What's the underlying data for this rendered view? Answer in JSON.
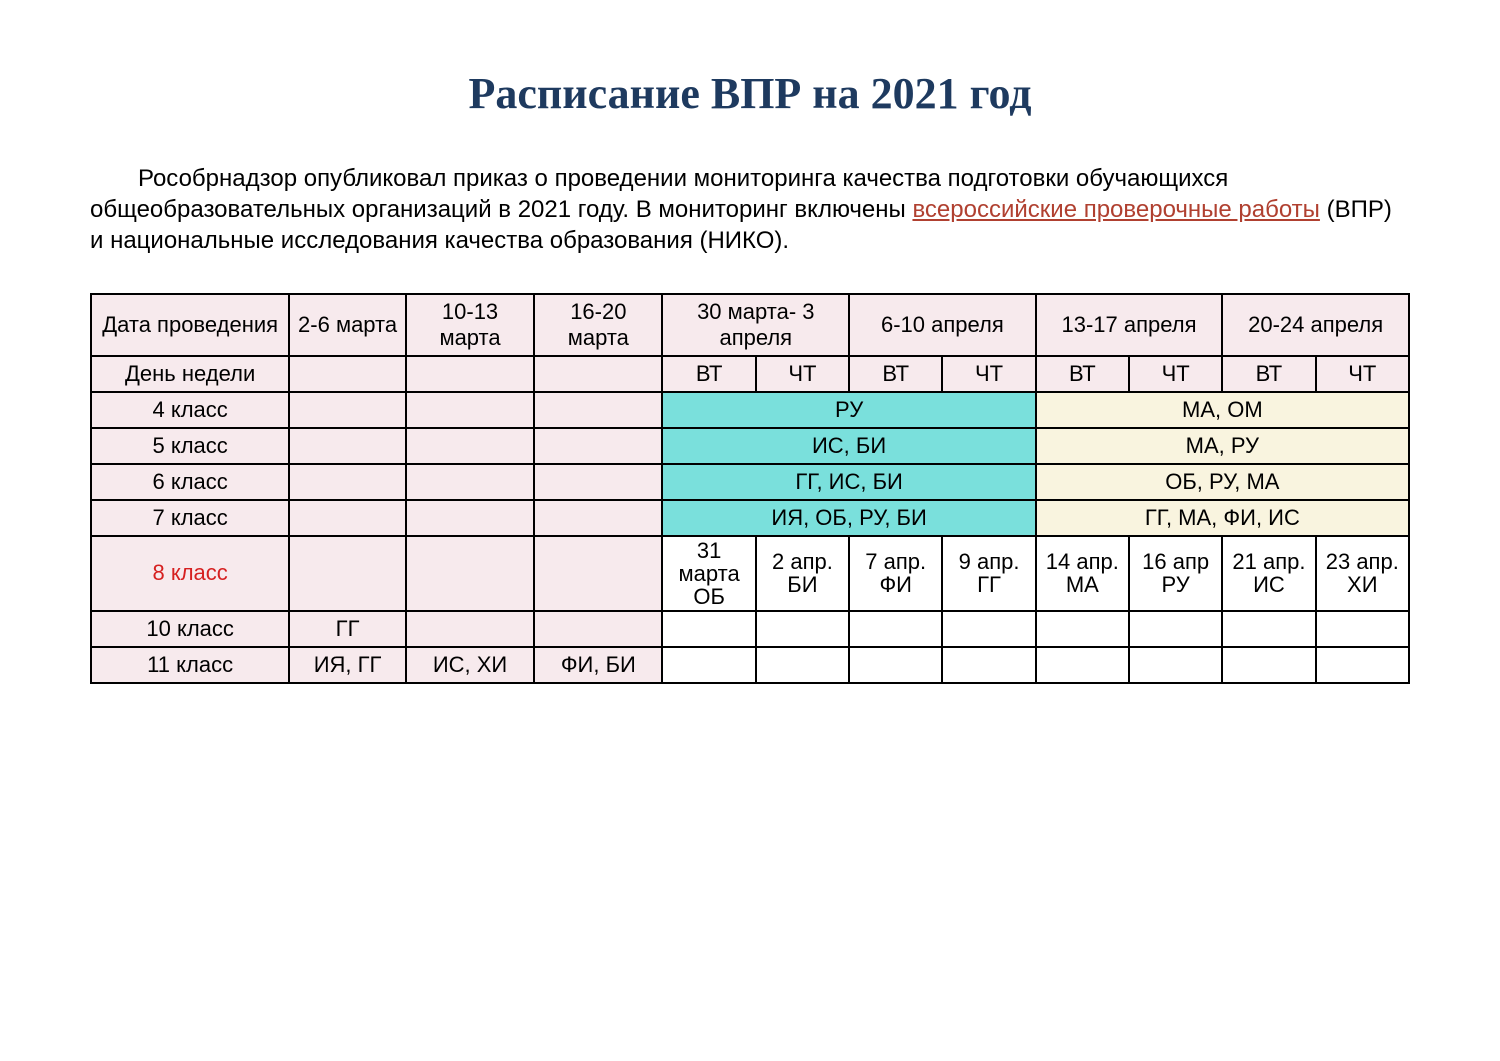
{
  "colors": {
    "title": "#1e3a5f",
    "text": "#000000",
    "link": "#b04030",
    "row_red": "#d62020",
    "bg_pink": "#f7eaed",
    "bg_cyan": "#7ae0dc",
    "bg_cream": "#f9f4df",
    "border": "#000000"
  },
  "title": "Расписание ВПР на 2021 год",
  "intro": {
    "pre": "Рособрнадзор опубликовал приказ о проведении мониторинга качества подготовки обучающихся общеобразовательных организаций в 2021 году. В мониторинг включены ",
    "link": "всероссийские проверочные работы",
    "post": " (ВПР) и национальные исследования качества образования (НИКО)."
  },
  "header": {
    "date_label": "Дата проведения",
    "c1": "2-6 марта",
    "c2": "10-13 марта",
    "c3": "16-20 марта",
    "c4": "30 марта- 3 апреля",
    "c5": "6-10 апреля",
    "c6": "13-17 апреля",
    "c7": "20-24 апреля"
  },
  "dayrow": {
    "label": "День недели",
    "vt": "ВТ",
    "cht": "ЧТ"
  },
  "rows": {
    "r4": {
      "label": "4 класс",
      "a": "РУ",
      "b": "МА, ОМ"
    },
    "r5": {
      "label": "5 класс",
      "a": "ИС, БИ",
      "b": "МА, РУ"
    },
    "r6": {
      "label": "6 класс",
      "a": "ГГ, ИС, БИ",
      "b": "ОБ, РУ, МА"
    },
    "r7": {
      "label": "7 класс",
      "a": "ИЯ, ОБ, РУ, БИ",
      "b": "ГГ, МА, ФИ, ИС"
    },
    "r8": {
      "label": "8 класс",
      "cells": [
        {
          "d": "31 марта",
          "s": "ОБ"
        },
        {
          "d": "2 апр.",
          "s": "БИ"
        },
        {
          "d": "7 апр.",
          "s": "ФИ"
        },
        {
          "d": "9 апр.",
          "s": "ГГ"
        },
        {
          "d": "14 апр.",
          "s": "МА"
        },
        {
          "d": "16 апр",
          "s": "РУ"
        },
        {
          "d": "21 апр.",
          "s": "ИС"
        },
        {
          "d": "23 апр.",
          "s": "ХИ"
        }
      ]
    },
    "r10": {
      "label": "10 класс",
      "c1": "ГГ"
    },
    "r11": {
      "label": "11 класс",
      "c1": "ИЯ, ГГ",
      "c2": "ИС, ХИ",
      "c3": "ФИ, БИ"
    }
  }
}
